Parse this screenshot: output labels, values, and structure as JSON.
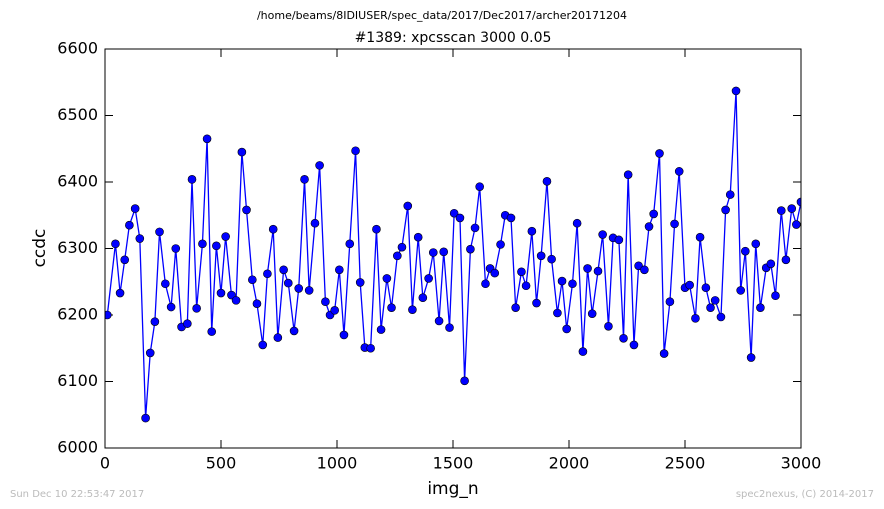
{
  "chart_data": {
    "type": "line",
    "suptitle": "/home/beams/8IDIUSER/spec_data/2017/Dec2017/archer20171204",
    "title": "#1389: xpcsscan 3000 0.05",
    "xlabel": "img_n",
    "ylabel": "ccdc",
    "footer_left": "Sun Dec 10 22:53:47 2017",
    "footer_right": "spec2nexus, (C) 2014-2017",
    "x": [
      10,
      45,
      65,
      85,
      105,
      130,
      150,
      175,
      195,
      215,
      235,
      260,
      285,
      305,
      330,
      355,
      375,
      395,
      420,
      440,
      460,
      480,
      500,
      520,
      545,
      565,
      590,
      610,
      635,
      655,
      680,
      700,
      725,
      745,
      770,
      790,
      815,
      835,
      860,
      880,
      905,
      925,
      950,
      970,
      990,
      1010,
      1030,
      1055,
      1080,
      1100,
      1120,
      1145,
      1170,
      1190,
      1215,
      1235,
      1260,
      1280,
      1305,
      1325,
      1350,
      1370,
      1395,
      1415,
      1440,
      1460,
      1485,
      1505,
      1530,
      1550,
      1575,
      1595,
      1615,
      1640,
      1660,
      1680,
      1705,
      1725,
      1750,
      1770,
      1795,
      1815,
      1840,
      1860,
      1880,
      1905,
      1925,
      1950,
      1970,
      1990,
      2015,
      2035,
      2060,
      2080,
      2100,
      2125,
      2145,
      2170,
      2190,
      2215,
      2235,
      2255,
      2280,
      2300,
      2325,
      2345,
      2365,
      2390,
      2410,
      2435,
      2455,
      2475,
      2500,
      2520,
      2545,
      2565,
      2590,
      2610,
      2630,
      2655,
      2675,
      2695,
      2720,
      2740,
      2760,
      2785,
      2805,
      2825,
      2850,
      2870,
      2890,
      2915,
      2935,
      2960,
      2980,
      3000
    ],
    "series": [
      {
        "name": "ccdc",
        "color": "#0000ff",
        "marker_color": "#0000ff",
        "values": [
          6200,
          6307,
          6233,
          6283,
          6335,
          6360,
          6315,
          6045,
          6143,
          6190,
          6325,
          6247,
          6212,
          6300,
          6182,
          6187,
          6404,
          6210,
          6307,
          6465,
          6175,
          6304,
          6233,
          6318,
          6230,
          6222,
          6445,
          6358,
          6253,
          6217,
          6155,
          6262,
          6329,
          6166,
          6268,
          6248,
          6176,
          6240,
          6404,
          6237,
          6338,
          6425,
          6220,
          6200,
          6207,
          6268,
          6170,
          6307,
          6447,
          6249,
          6151,
          6150,
          6329,
          6178,
          6255,
          6211,
          6289,
          6302,
          6364,
          6208,
          6317,
          6226,
          6255,
          6294,
          6191,
          6295,
          6181,
          6353,
          6346,
          6101,
          6299,
          6331,
          6393,
          6247,
          6270,
          6263,
          6306,
          6350,
          6346,
          6211,
          6265,
          6244,
          6326,
          6218,
          6289,
          6401,
          6284,
          6203,
          6251,
          6179,
          6247,
          6338,
          6145,
          6270,
          6202,
          6266,
          6321,
          6183,
          6316,
          6313,
          6165,
          6411,
          6155,
          6274,
          6268,
          6333,
          6352,
          6443,
          6142,
          6220,
          6337,
          6416,
          6241,
          6245,
          6195,
          6317,
          6241,
          6211,
          6222,
          6197,
          6358,
          6381,
          6537,
          6237,
          6296,
          6136,
          6307,
          6211,
          6271,
          6277,
          6229,
          6357,
          6283,
          6360,
          6336,
          6370
        ]
      }
    ],
    "xlim": [
      0,
      3000
    ],
    "ylim": [
      6000,
      6600
    ],
    "xticks": [
      0,
      500,
      1000,
      1500,
      2000,
      2500,
      3000
    ],
    "yticks": [
      6000,
      6100,
      6200,
      6300,
      6400,
      6500,
      6600
    ]
  }
}
